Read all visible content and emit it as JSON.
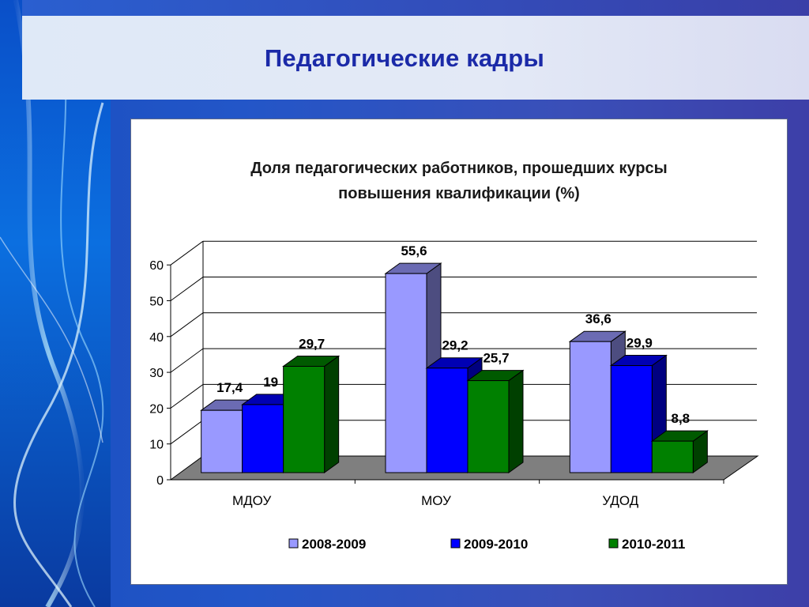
{
  "slide": {
    "title": "Педагогические кадры"
  },
  "chart_data": {
    "type": "bar",
    "title_line1": "Доля педагогических работников, прошедших курсы",
    "title_line2": "повышения квалификации (%)",
    "categories": [
      "МДОУ",
      "МОУ",
      "УДОД"
    ],
    "series": [
      {
        "name": "2008-2009",
        "values": [
          17.4,
          55.6,
          36.6
        ],
        "labels": [
          "17,4",
          "55,6",
          "36,6"
        ],
        "color": "#9999ff"
      },
      {
        "name": "2009-2010",
        "values": [
          19,
          29.2,
          29.9
        ],
        "labels": [
          "19",
          "29,2",
          "29,9"
        ],
        "color": "#0000ff"
      },
      {
        "name": "2010-2011",
        "values": [
          29.7,
          25.7,
          8.8
        ],
        "labels": [
          "29,7",
          "25,7",
          "8,8"
        ],
        "color": "#008000"
      }
    ],
    "yticks": [
      "0",
      "10",
      "20",
      "30",
      "40",
      "50",
      "60"
    ],
    "ylim": [
      0,
      60
    ],
    "grid": true,
    "legend_position": "bottom",
    "three_d": true
  }
}
